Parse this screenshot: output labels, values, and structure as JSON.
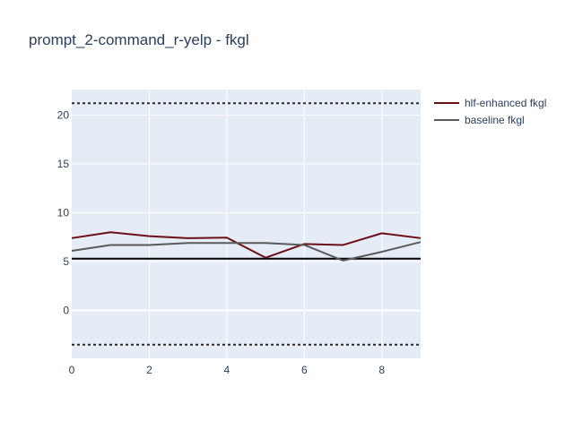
{
  "chart_data": {
    "type": "line",
    "title": "prompt_2-command_r-yelp - fkgl",
    "xlabel": "",
    "ylabel": "",
    "x": [
      0,
      1,
      2,
      3,
      4,
      5,
      6,
      7,
      8,
      9
    ],
    "xlim": [
      0,
      9
    ],
    "ylim": [
      -4.9,
      22.6
    ],
    "x_ticks": [
      0,
      2,
      4,
      6,
      8
    ],
    "y_ticks": [
      0,
      5,
      10,
      15,
      20
    ],
    "grid": true,
    "legend_position": "top-right",
    "series": [
      {
        "name": "hlf-enhanced fkgl",
        "color": "#6b0f17",
        "values": [
          7.4,
          8.0,
          7.6,
          7.4,
          7.45,
          5.4,
          6.8,
          6.7,
          7.9,
          7.4
        ]
      },
      {
        "name": "baseline fkgl",
        "color": "#5a5a5a",
        "values": [
          6.1,
          6.7,
          6.7,
          6.9,
          6.9,
          6.9,
          6.7,
          5.1,
          6.0,
          7.0
        ]
      }
    ],
    "reference_lines": [
      {
        "y": 21.2,
        "style": "dotted",
        "color": "#2a2a2a"
      },
      {
        "y": 5.3,
        "style": "solid",
        "color": "#000000"
      },
      {
        "y": -3.5,
        "style": "dotted",
        "color": "#2a2a2a"
      }
    ],
    "colors": {
      "plot_background": "#e5ecf6",
      "grid": "#ffffff",
      "text": "#2a3f5f"
    }
  }
}
